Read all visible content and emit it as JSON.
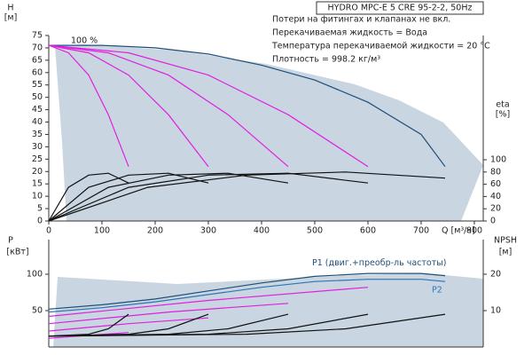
{
  "chart_data": [
    {
      "type": "line",
      "title": "HYDRO MPC-E 5 CRE 95-2-2, 50Hz",
      "notes": [
        "Потери на фитингах и клапанах не вкл.",
        "Перекачиваемая жидкость = Вода",
        "Температура перекачиваемой жидкости = 20 °C",
        "Плотность = 998.2 кг/м³"
      ],
      "annotation": "100 %",
      "x_label": "Q [м³/ч]",
      "y_label": "H",
      "y_unit": "[м]",
      "y2_label": "eta",
      "y2_unit": "[%]",
      "xlim": [
        0,
        815
      ],
      "xticks": [
        0,
        100,
        200,
        300,
        400,
        500,
        600,
        700,
        800
      ],
      "ylim": [
        0,
        75
      ],
      "yticks": [
        0,
        5,
        10,
        15,
        20,
        25,
        30,
        35,
        40,
        45,
        50,
        55,
        60,
        65,
        70,
        75
      ],
      "y2lim": [
        0,
        303
      ],
      "y2ticks": [
        0,
        20,
        40,
        60,
        80,
        100
      ],
      "series": [
        {
          "color": "#1f4e79",
          "x": [
            0,
            100,
            200,
            300,
            400,
            500,
            600,
            700,
            745
          ],
          "values": [
            71,
            71,
            70,
            67.5,
            63,
            57,
            48,
            35,
            22
          ]
        },
        {
          "color": "#e020e0",
          "x": [
            0,
            37,
            75,
            112,
            150
          ],
          "values": [
            71,
            68,
            59,
            43,
            22
          ]
        },
        {
          "color": "#e020e0",
          "x": [
            0,
            75,
            150,
            225,
            300
          ],
          "values": [
            71,
            68,
            59,
            43,
            22
          ]
        },
        {
          "color": "#e020e0",
          "x": [
            0,
            112,
            225,
            337,
            450
          ],
          "values": [
            71,
            68,
            59,
            43,
            22
          ]
        },
        {
          "color": "#e020e0",
          "x": [
            0,
            150,
            300,
            450,
            600
          ],
          "values": [
            71,
            68,
            59,
            43,
            22
          ]
        },
        {
          "color": "#111111",
          "axis": "y2",
          "x": [
            0,
            37,
            75,
            112,
            150
          ],
          "values": [
            0,
            55,
            75,
            78,
            62
          ]
        },
        {
          "color": "#111111",
          "axis": "y2",
          "x": [
            0,
            75,
            150,
            225,
            300
          ],
          "values": [
            0,
            55,
            75,
            78,
            62
          ]
        },
        {
          "color": "#111111",
          "axis": "y2",
          "x": [
            0,
            112,
            225,
            337,
            450
          ],
          "values": [
            0,
            55,
            75,
            78,
            62
          ]
        },
        {
          "color": "#111111",
          "axis": "y2",
          "x": [
            0,
            150,
            300,
            450,
            600
          ],
          "values": [
            0,
            55,
            75,
            78,
            62
          ]
        },
        {
          "color": "#111111",
          "axis": "y2",
          "x": [
            0,
            186,
            372,
            558,
            745
          ],
          "values": [
            0,
            55,
            75,
            80,
            70
          ]
        }
      ]
    },
    {
      "type": "line",
      "y_label": "P",
      "y_unit": "[кВт]",
      "y2_label": "NPSH",
      "y2_unit": "[м]",
      "xlim": [
        0,
        815
      ],
      "ylim": [
        0,
        147.5
      ],
      "yticks": [
        50,
        100
      ],
      "y2lim": [
        0,
        29.5
      ],
      "y2ticks": [
        10,
        20
      ],
      "series": [
        {
          "name": "P1 (двиг.+преобр-ль частоты)",
          "color": "#1f4e79",
          "x": [
            0,
            100,
            200,
            300,
            400,
            500,
            600,
            700,
            745
          ],
          "values": [
            52,
            58,
            66,
            77,
            88,
            97,
            101,
            101,
            98
          ]
        },
        {
          "name": "P2",
          "color": "#2e75b6",
          "x": [
            0,
            100,
            200,
            300,
            400,
            500,
            600,
            700,
            745
          ],
          "values": [
            48,
            54,
            62,
            72,
            82,
            90,
            93,
            93,
            90
          ]
        },
        {
          "color": "#e020e0",
          "x": [
            0,
            75,
            150
          ],
          "values": [
            12,
            16,
            20
          ]
        },
        {
          "color": "#e020e0",
          "x": [
            0,
            150,
            300
          ],
          "values": [
            22,
            32,
            40
          ]
        },
        {
          "color": "#e020e0",
          "x": [
            0,
            225,
            450
          ],
          "values": [
            32,
            48,
            60
          ]
        },
        {
          "color": "#e020e0",
          "x": [
            0,
            300,
            600
          ],
          "values": [
            42,
            64,
            82
          ]
        },
        {
          "color": "#111111",
          "axis": "y2",
          "x": [
            0,
            75,
            112,
            150
          ],
          "values": [
            3,
            3.5,
            5,
            9
          ]
        },
        {
          "color": "#111111",
          "axis": "y2",
          "x": [
            0,
            150,
            225,
            300
          ],
          "values": [
            3,
            3.5,
            5,
            9
          ]
        },
        {
          "color": "#111111",
          "axis": "y2",
          "x": [
            0,
            225,
            337,
            450
          ],
          "values": [
            3,
            3.5,
            5,
            9
          ]
        },
        {
          "color": "#111111",
          "axis": "y2",
          "x": [
            0,
            300,
            450,
            600
          ],
          "values": [
            3,
            3.5,
            5,
            9
          ]
        },
        {
          "color": "#111111",
          "axis": "y2",
          "x": [
            0,
            372,
            558,
            745
          ],
          "values": [
            3,
            3.5,
            5,
            9
          ]
        }
      ]
    }
  ]
}
